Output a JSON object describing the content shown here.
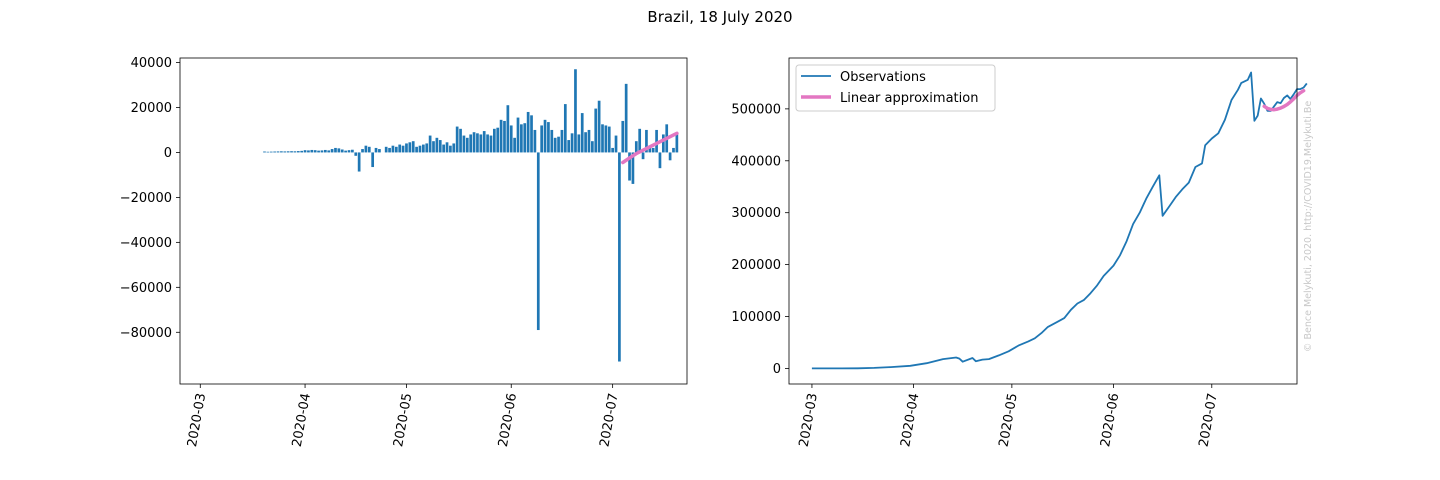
{
  "figure": {
    "title": "Brazil, 18 July 2020",
    "watermark": "© Bence Melykuti, 2020. http://COVID19.Melykuti.Be"
  },
  "colors": {
    "observations": "#1f77b4",
    "approximation": "#e377c2",
    "watermark": "#c8c8c8"
  },
  "chart_data": [
    {
      "type": "bar",
      "x_type": "date",
      "xlim": [
        "2020-02-24",
        "2020-07-23"
      ],
      "ylim": [
        -103000,
        42000
      ],
      "xticks": [
        "2020-03",
        "2020-04",
        "2020-05",
        "2020-06",
        "2020-07"
      ],
      "yticks": [
        40000,
        20000,
        0,
        -20000,
        -40000,
        -60000,
        -80000
      ],
      "ytick_labels": [
        "40000",
        "20000",
        "0",
        "−20000",
        "−40000",
        "−60000",
        "−80000"
      ],
      "series": [
        {
          "values": [
            [
              "2020-03-20",
              400
            ],
            [
              "2020-03-21",
              300
            ],
            [
              "2020-03-22",
              350
            ],
            [
              "2020-03-23",
              400
            ],
            [
              "2020-03-24",
              450
            ],
            [
              "2020-03-25",
              500
            ],
            [
              "2020-03-26",
              450
            ],
            [
              "2020-03-27",
              500
            ],
            [
              "2020-03-28",
              550
            ],
            [
              "2020-03-29",
              500
            ],
            [
              "2020-03-30",
              600
            ],
            [
              "2020-03-31",
              700
            ],
            [
              "2020-04-01",
              1000
            ],
            [
              "2020-04-02",
              900
            ],
            [
              "2020-04-03",
              1100
            ],
            [
              "2020-04-04",
              1000
            ],
            [
              "2020-04-05",
              800
            ],
            [
              "2020-04-06",
              900
            ],
            [
              "2020-04-07",
              1100
            ],
            [
              "2020-04-08",
              900
            ],
            [
              "2020-04-09",
              1500
            ],
            [
              "2020-04-10",
              2000
            ],
            [
              "2020-04-11",
              1800
            ],
            [
              "2020-04-12",
              1300
            ],
            [
              "2020-04-13",
              800
            ],
            [
              "2020-04-14",
              1000
            ],
            [
              "2020-04-15",
              1200
            ],
            [
              "2020-04-16",
              -1500
            ],
            [
              "2020-04-17",
              -8500
            ],
            [
              "2020-04-18",
              1500
            ],
            [
              "2020-04-19",
              3000
            ],
            [
              "2020-04-20",
              2500
            ],
            [
              "2020-04-21",
              -6500
            ],
            [
              "2020-04-22",
              2000
            ],
            [
              "2020-04-23",
              1500
            ],
            [
              "2020-04-25",
              2500
            ],
            [
              "2020-04-26",
              2000
            ],
            [
              "2020-04-27",
              3000
            ],
            [
              "2020-04-28",
              2500
            ],
            [
              "2020-04-29",
              3500
            ],
            [
              "2020-04-30",
              3000
            ],
            [
              "2020-05-01",
              4000
            ],
            [
              "2020-05-02",
              4500
            ],
            [
              "2020-05-03",
              5000
            ],
            [
              "2020-05-04",
              2500
            ],
            [
              "2020-05-05",
              3000
            ],
            [
              "2020-05-06",
              3500
            ],
            [
              "2020-05-07",
              4000
            ],
            [
              "2020-05-08",
              7500
            ],
            [
              "2020-05-09",
              5000
            ],
            [
              "2020-05-10",
              6500
            ],
            [
              "2020-05-11",
              5500
            ],
            [
              "2020-05-12",
              3500
            ],
            [
              "2020-05-13",
              4500
            ],
            [
              "2020-05-14",
              3000
            ],
            [
              "2020-05-15",
              4000
            ],
            [
              "2020-05-16",
              11500
            ],
            [
              "2020-05-17",
              10500
            ],
            [
              "2020-05-18",
              7500
            ],
            [
              "2020-05-19",
              6500
            ],
            [
              "2020-05-20",
              8000
            ],
            [
              "2020-05-21",
              9000
            ],
            [
              "2020-05-22",
              8500
            ],
            [
              "2020-05-23",
              8000
            ],
            [
              "2020-05-24",
              9500
            ],
            [
              "2020-05-25",
              8000
            ],
            [
              "2020-05-26",
              7500
            ],
            [
              "2020-05-27",
              10500
            ],
            [
              "2020-05-28",
              11000
            ],
            [
              "2020-05-29",
              14500
            ],
            [
              "2020-05-30",
              14000
            ],
            [
              "2020-05-31",
              21000
            ],
            [
              "2020-06-01",
              12000
            ],
            [
              "2020-06-02",
              6500
            ],
            [
              "2020-06-03",
              15500
            ],
            [
              "2020-06-04",
              12500
            ],
            [
              "2020-06-05",
              13000
            ],
            [
              "2020-06-06",
              18000
            ],
            [
              "2020-06-07",
              16500
            ],
            [
              "2020-06-08",
              10000
            ],
            [
              "2020-06-09",
              -79000
            ],
            [
              "2020-06-10",
              12000
            ],
            [
              "2020-06-11",
              14500
            ],
            [
              "2020-06-12",
              13500
            ],
            [
              "2020-06-13",
              10000
            ],
            [
              "2020-06-14",
              6500
            ],
            [
              "2020-06-15",
              7000
            ],
            [
              "2020-06-16",
              10000
            ],
            [
              "2020-06-17",
              21500
            ],
            [
              "2020-06-18",
              5500
            ],
            [
              "2020-06-19",
              8500
            ],
            [
              "2020-06-20",
              37000
            ],
            [
              "2020-06-21",
              8000
            ],
            [
              "2020-06-22",
              17500
            ],
            [
              "2020-06-23",
              9000
            ],
            [
              "2020-06-24",
              10000
            ],
            [
              "2020-06-25",
              5000
            ],
            [
              "2020-06-26",
              19500
            ],
            [
              "2020-06-27",
              23000
            ],
            [
              "2020-06-28",
              12500
            ],
            [
              "2020-06-29",
              12000
            ],
            [
              "2020-06-30",
              11500
            ],
            [
              "2020-07-01",
              2000
            ],
            [
              "2020-07-02",
              7500
            ],
            [
              "2020-07-03",
              -93000
            ],
            [
              "2020-07-04",
              14000
            ],
            [
              "2020-07-05",
              30500
            ],
            [
              "2020-07-06",
              -12500
            ],
            [
              "2020-07-07",
              -14000
            ],
            [
              "2020-07-08",
              5000
            ],
            [
              "2020-07-09",
              10500
            ],
            [
              "2020-07-10",
              -3000
            ],
            [
              "2020-07-11",
              10000
            ],
            [
              "2020-07-12",
              2500
            ],
            [
              "2020-07-13",
              2000
            ],
            [
              "2020-07-14",
              10000
            ],
            [
              "2020-07-15",
              -7000
            ],
            [
              "2020-07-16",
              8000
            ],
            [
              "2020-07-17",
              12500
            ],
            [
              "2020-07-18",
              -3500
            ],
            [
              "2020-07-19",
              2000
            ],
            [
              "2020-07-20",
              8000
            ]
          ]
        },
        {
          "type": "line",
          "values": [
            [
              "2020-07-04",
              -4500
            ],
            [
              "2020-07-06",
              -2500
            ],
            [
              "2020-07-08",
              -500
            ],
            [
              "2020-07-10",
              1000
            ],
            [
              "2020-07-12",
              2500
            ],
            [
              "2020-07-14",
              4000
            ],
            [
              "2020-07-16",
              5500
            ],
            [
              "2020-07-18",
              7000
            ],
            [
              "2020-07-20",
              8500
            ]
          ]
        }
      ]
    },
    {
      "type": "line",
      "x_type": "date",
      "xlim": [
        "2020-02-23",
        "2020-07-27"
      ],
      "ylim": [
        -30000,
        598000
      ],
      "xticks": [
        "2020-03",
        "2020-04",
        "2020-05",
        "2020-06",
        "2020-07"
      ],
      "yticks": [
        0,
        100000,
        200000,
        300000,
        400000,
        500000
      ],
      "ytick_labels": [
        "0",
        "100000",
        "200000",
        "300000",
        "400000",
        "500000"
      ],
      "legend": "upper left",
      "series": [
        {
          "name": "Observations",
          "values": [
            [
              "2020-03-01",
              0
            ],
            [
              "2020-03-10",
              0
            ],
            [
              "2020-03-15",
              200
            ],
            [
              "2020-03-20",
              1000
            ],
            [
              "2020-03-25",
              2500
            ],
            [
              "2020-03-31",
              5000
            ],
            [
              "2020-04-05",
              10000
            ],
            [
              "2020-04-10",
              18000
            ],
            [
              "2020-04-14",
              21000
            ],
            [
              "2020-04-15",
              19000
            ],
            [
              "2020-04-16",
              13000
            ],
            [
              "2020-04-19",
              20000
            ],
            [
              "2020-04-20",
              14000
            ],
            [
              "2020-04-22",
              17000
            ],
            [
              "2020-04-24",
              18000
            ],
            [
              "2020-04-27",
              25000
            ],
            [
              "2020-04-30",
              33000
            ],
            [
              "2020-05-03",
              44000
            ],
            [
              "2020-05-06",
              52000
            ],
            [
              "2020-05-08",
              58000
            ],
            [
              "2020-05-10",
              68000
            ],
            [
              "2020-05-12",
              80000
            ],
            [
              "2020-05-15",
              90000
            ],
            [
              "2020-05-17",
              97000
            ],
            [
              "2020-05-19",
              113000
            ],
            [
              "2020-05-21",
              125000
            ],
            [
              "2020-05-23",
              132000
            ],
            [
              "2020-05-25",
              145000
            ],
            [
              "2020-05-27",
              160000
            ],
            [
              "2020-05-29",
              178000
            ],
            [
              "2020-06-01",
              198000
            ],
            [
              "2020-06-03",
              218000
            ],
            [
              "2020-06-05",
              245000
            ],
            [
              "2020-06-07",
              278000
            ],
            [
              "2020-06-09",
              300000
            ],
            [
              "2020-06-11",
              327000
            ],
            [
              "2020-06-13",
              350000
            ],
            [
              "2020-06-15",
              372000
            ],
            [
              "2020-06-16",
              294000
            ],
            [
              "2020-06-18",
              312000
            ],
            [
              "2020-06-20",
              330000
            ],
            [
              "2020-06-22",
              345000
            ],
            [
              "2020-06-24",
              358000
            ],
            [
              "2020-06-26",
              388000
            ],
            [
              "2020-06-28",
              395000
            ],
            [
              "2020-06-29",
              430000
            ],
            [
              "2020-07-01",
              443000
            ],
            [
              "2020-07-03",
              453000
            ],
            [
              "2020-07-05",
              479000
            ],
            [
              "2020-07-07",
              517000
            ],
            [
              "2020-07-09",
              537000
            ],
            [
              "2020-07-10",
              550000
            ],
            [
              "2020-07-12",
              556000
            ],
            [
              "2020-07-13",
              570000
            ],
            [
              "2020-07-14",
              477000
            ],
            [
              "2020-07-15",
              487000
            ],
            [
              "2020-07-16",
              520000
            ],
            [
              "2020-07-17",
              510000
            ],
            [
              "2020-07-18",
              496000
            ],
            [
              "2020-07-19",
              496000
            ],
            [
              "2020-07-20",
              505000
            ],
            [
              "2020-07-21",
              513000
            ],
            [
              "2020-07-22",
              511000
            ],
            [
              "2020-07-23",
              521000
            ],
            [
              "2020-07-24",
              526000
            ],
            [
              "2020-07-25",
              519000
            ],
            [
              "2020-07-26",
              528000
            ],
            [
              "2020-07-27",
              538000
            ],
            [
              "2020-07-28",
              538000
            ],
            [
              "2020-07-29",
              541000
            ],
            [
              "2020-07-30",
              549000
            ]
          ]
        },
        {
          "name": "Linear approximation",
          "values": [
            [
              "2020-07-17",
              505000
            ],
            [
              "2020-07-18",
              501000
            ],
            [
              "2020-07-19",
              499000
            ],
            [
              "2020-07-20",
              498500
            ],
            [
              "2020-07-21",
              499500
            ],
            [
              "2020-07-22",
              501500
            ],
            [
              "2020-07-23",
              504500
            ],
            [
              "2020-07-24",
              508500
            ],
            [
              "2020-07-25",
              513500
            ],
            [
              "2020-07-26",
              519500
            ],
            [
              "2020-07-27",
              526000
            ],
            [
              "2020-07-28",
              531000
            ],
            [
              "2020-07-29",
              535000
            ]
          ]
        }
      ]
    }
  ]
}
